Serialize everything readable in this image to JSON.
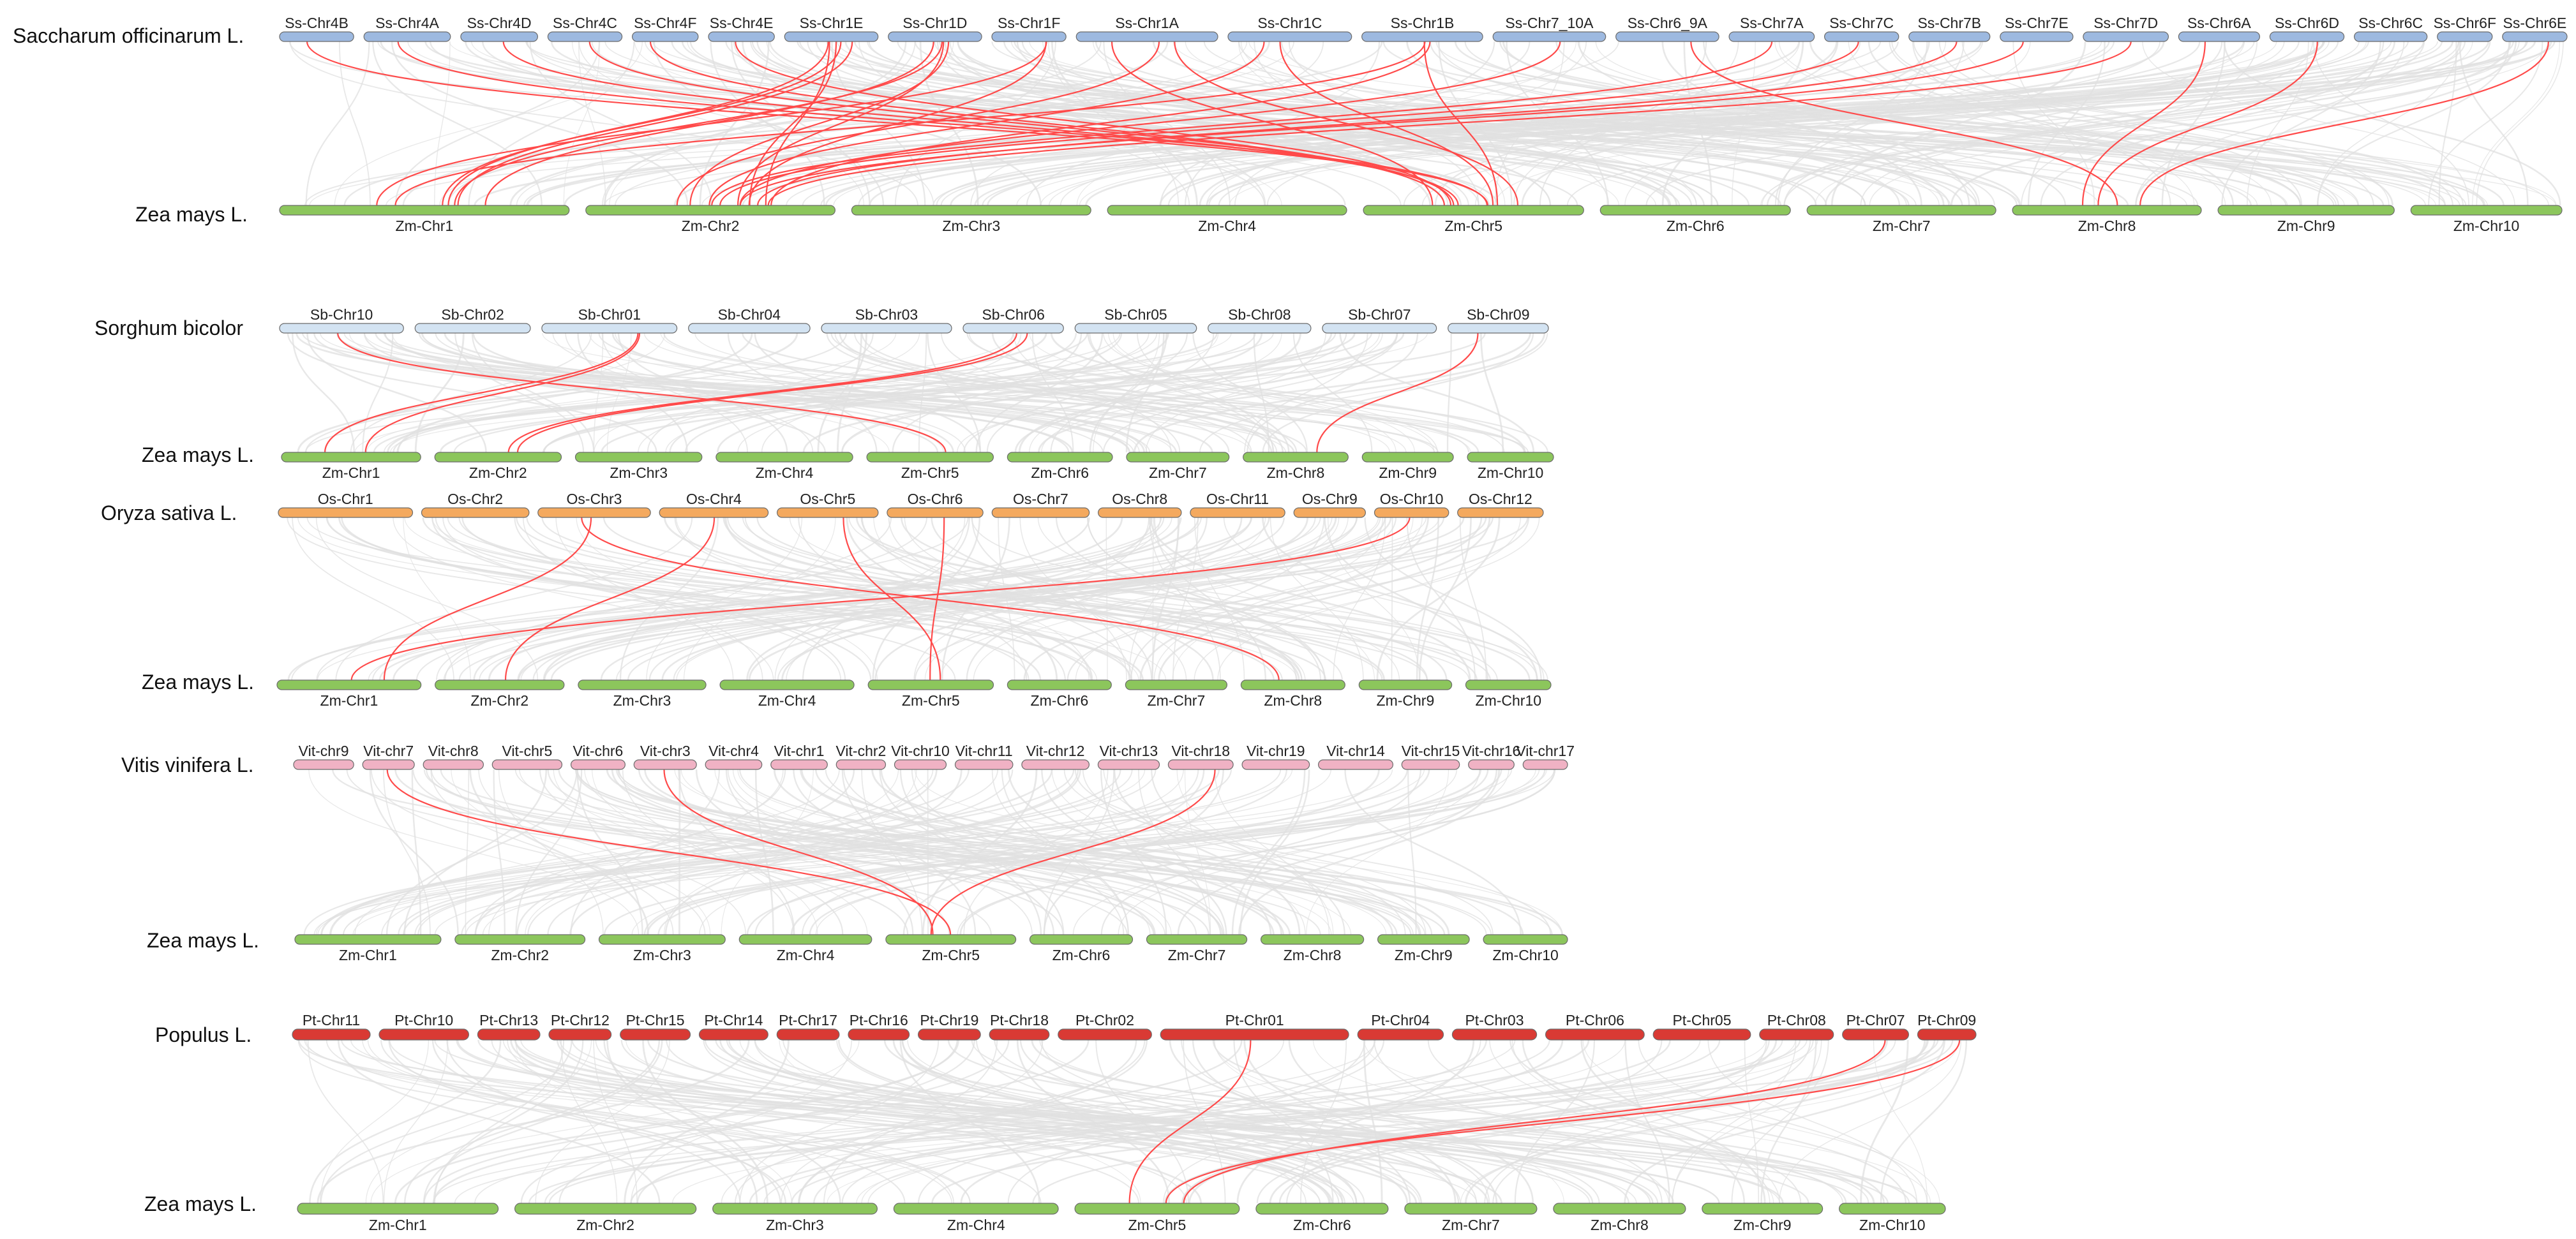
{
  "colors": {
    "saccharum": "#9db9e0",
    "sorghum": "#d3e3f2",
    "oryza": "#f4a95e",
    "vitis": "#f0b2c4",
    "populus": "#d93a34",
    "zea": "#8cc65c",
    "background_link": "#e0e0e0",
    "highlight_link": "#ff4a4a"
  },
  "panels": [
    {
      "id": "saccharum",
      "top_species": "Saccharum officinarum L.",
      "bottom_species": "Zea mays L.",
      "top_chromosomes": [
        "Ss-Chr4B",
        "Ss-Chr4A",
        "Ss-Chr4D",
        "Ss-Chr4C",
        "Ss-Chr4F",
        "Ss-Chr4E",
        "Ss-Chr1E",
        "Ss-Chr1D",
        "Ss-Chr1F",
        "Ss-Chr1A",
        "Ss-Chr1C",
        "Ss-Chr1B",
        "Ss-Chr7_10A",
        "Ss-Chr6_9A",
        "Ss-Chr7A",
        "Ss-Chr7C",
        "Ss-Chr7B",
        "Ss-Chr7E",
        "Ss-Chr7D",
        "Ss-Chr6A",
        "Ss-Chr6D",
        "Ss-Chr6C",
        "Ss-Chr6F",
        "Ss-Chr6E"
      ],
      "bottom_chromosomes": [
        "Zm-Chr1",
        "Zm-Chr2",
        "Zm-Chr3",
        "Zm-Chr4",
        "Zm-Chr5",
        "Zm-Chr6",
        "Zm-Chr7",
        "Zm-Chr8",
        "Zm-Chr9",
        "Zm-Chr10"
      ]
    },
    {
      "id": "sorghum",
      "top_species": "Sorghum bicolor",
      "bottom_species": "Zea mays L.",
      "top_chromosomes": [
        "Sb-Chr10",
        "Sb-Chr02",
        "Sb-Chr01",
        "Sb-Chr04",
        "Sb-Chr03",
        "Sb-Chr06",
        "Sb-Chr05",
        "Sb-Chr08",
        "Sb-Chr07",
        "Sb-Chr09"
      ],
      "bottom_chromosomes": [
        "Zm-Chr1",
        "Zm-Chr2",
        "Zm-Chr3",
        "Zm-Chr4",
        "Zm-Chr5",
        "Zm-Chr6",
        "Zm-Chr7",
        "Zm-Chr8",
        "Zm-Chr9",
        "Zm-Chr10"
      ]
    },
    {
      "id": "oryza",
      "top_species": "Oryza sativa L.",
      "bottom_species": "Zea mays L.",
      "top_chromosomes": [
        "Os-Chr1",
        "Os-Chr2",
        "Os-Chr3",
        "Os-Chr4",
        "Os-Chr5",
        "Os-Chr6",
        "Os-Chr7",
        "Os-Chr8",
        "Os-Chr11",
        "Os-Chr9",
        "Os-Chr10",
        "Os-Chr12"
      ],
      "bottom_chromosomes": [
        "Zm-Chr1",
        "Zm-Chr2",
        "Zm-Chr3",
        "Zm-Chr4",
        "Zm-Chr5",
        "Zm-Chr6",
        "Zm-Chr7",
        "Zm-Chr8",
        "Zm-Chr9",
        "Zm-Chr10"
      ]
    },
    {
      "id": "vitis",
      "top_species": "Vitis vinifera L.",
      "bottom_species": "Zea mays L.",
      "top_chromosomes": [
        "Vit-chr9",
        "Vit-chr7",
        "Vit-chr8",
        "Vit-chr5",
        "Vit-chr6",
        "Vit-chr3",
        "Vit-chr4",
        "Vit-chr1",
        "Vit-chr2",
        "Vit-chr10",
        "Vit-chr11",
        "Vit-chr12",
        "Vit-chr13",
        "Vit-chr18",
        "Vit-chr19",
        "Vit-chr14",
        "Vit-chr15",
        "Vit-chr16",
        "Vit-chr17"
      ],
      "bottom_chromosomes": [
        "Zm-Chr1",
        "Zm-Chr2",
        "Zm-Chr3",
        "Zm-Chr4",
        "Zm-Chr5",
        "Zm-Chr6",
        "Zm-Chr7",
        "Zm-Chr8",
        "Zm-Chr9",
        "Zm-Chr10"
      ]
    },
    {
      "id": "populus",
      "top_species": "Populus L.",
      "bottom_species": "Zea mays L.",
      "top_chromosomes": [
        "Pt-Chr11",
        "Pt-Chr10",
        "Pt-Chr13",
        "Pt-Chr12",
        "Pt-Chr15",
        "Pt-Chr14",
        "Pt-Chr17",
        "Pt-Chr16",
        "Pt-Chr19",
        "Pt-Chr18",
        "Pt-Chr02",
        "Pt-Chr01",
        "Pt-Chr04",
        "Pt-Chr03",
        "Pt-Chr06",
        "Pt-Chr05",
        "Pt-Chr08",
        "Pt-Chr07",
        "Pt-Chr09"
      ],
      "bottom_chromosomes": [
        "Zm-Chr1",
        "Zm-Chr2",
        "Zm-Chr3",
        "Zm-Chr4",
        "Zm-Chr5",
        "Zm-Chr6",
        "Zm-Chr7",
        "Zm-Chr8",
        "Zm-Chr9",
        "Zm-Chr10"
      ]
    }
  ]
}
